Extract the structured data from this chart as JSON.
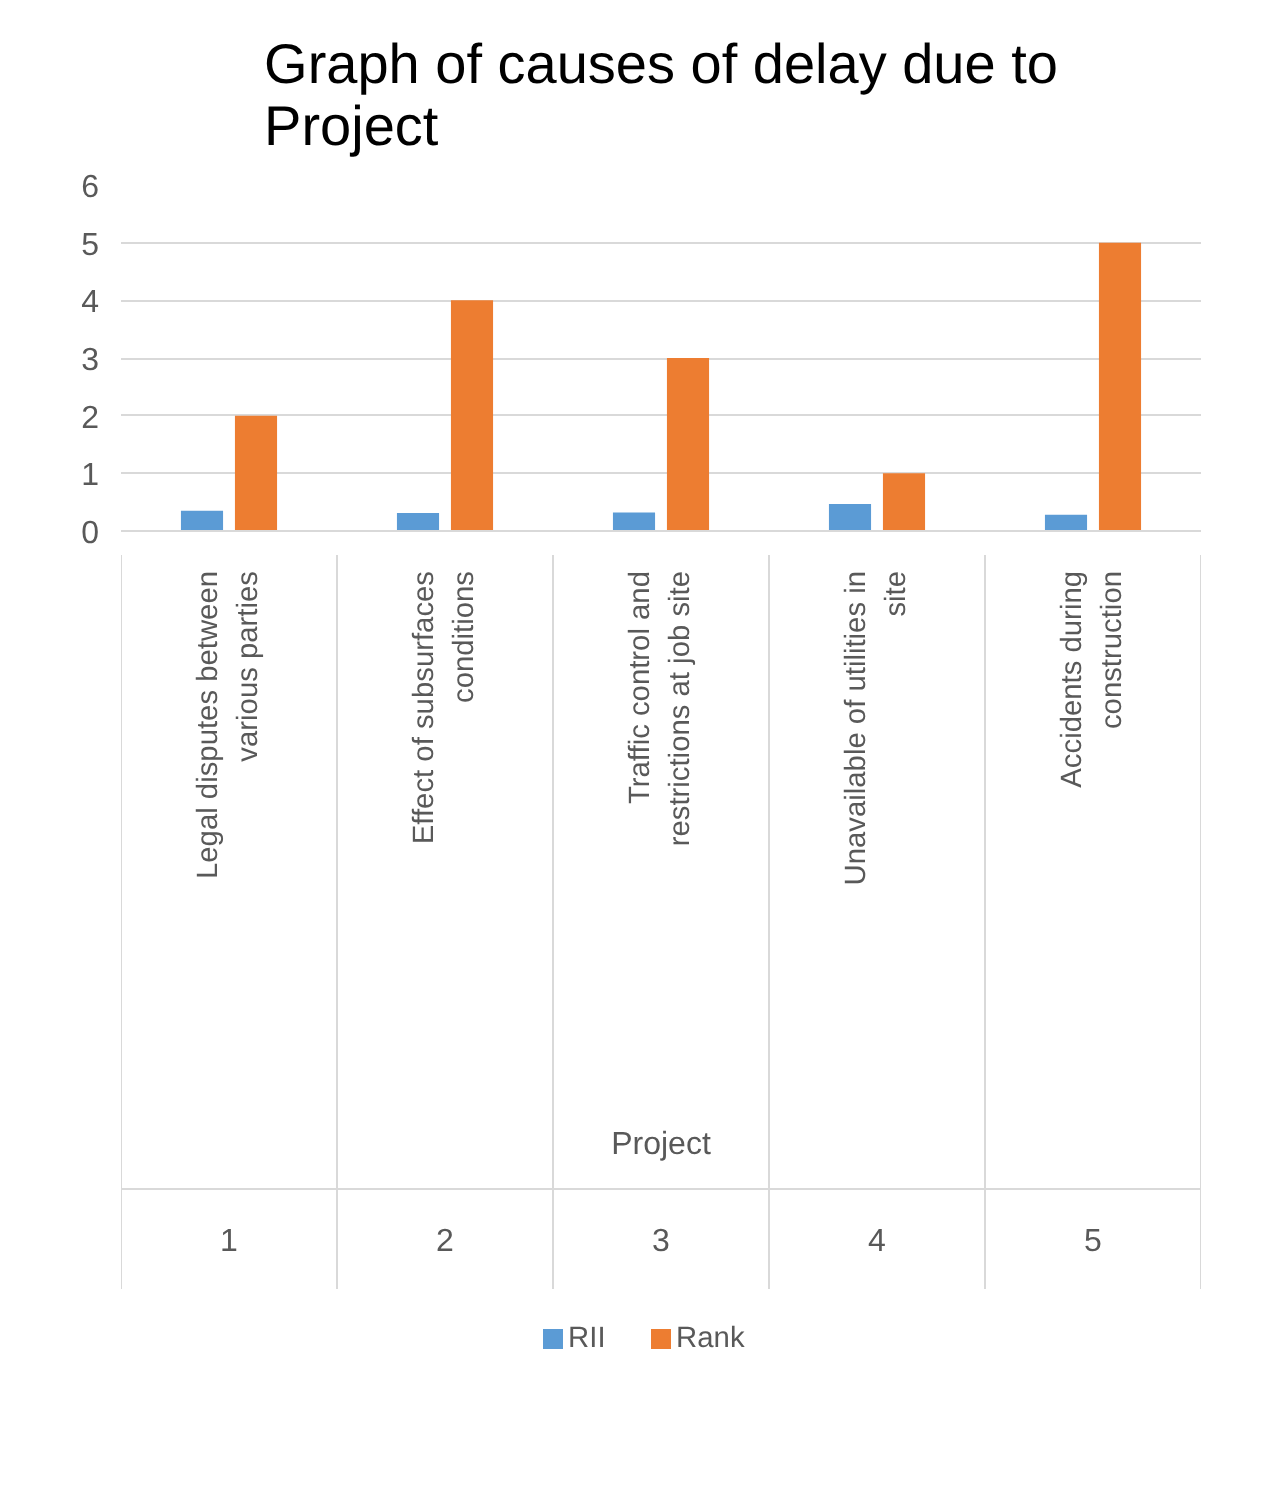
{
  "chart_data": {
    "type": "bar",
    "title": "Graph of causes of delay due to Project",
    "categories": [
      "Legal disputes between various parties",
      "Effect of subsurfaces conditions",
      "Traffic control and restrictions at job site",
      "Unavailable of utilities in site",
      "Accidents during construction"
    ],
    "series": [
      {
        "name": "RII",
        "color": "#5b9bd5",
        "values": [
          0.35,
          0.31,
          0.32,
          0.47,
          0.28
        ]
      },
      {
        "name": "Rank",
        "color": "#ed7d31",
        "values": [
          2,
          4,
          3,
          1,
          5
        ]
      }
    ],
    "ylim": [
      0,
      6
    ],
    "yticks": [
      0,
      1,
      2,
      3,
      4,
      5,
      6
    ],
    "grid": "y",
    "legend": "bottom",
    "annotations": [
      "Project",
      "1",
      "2",
      "3",
      "4",
      "5"
    ]
  }
}
